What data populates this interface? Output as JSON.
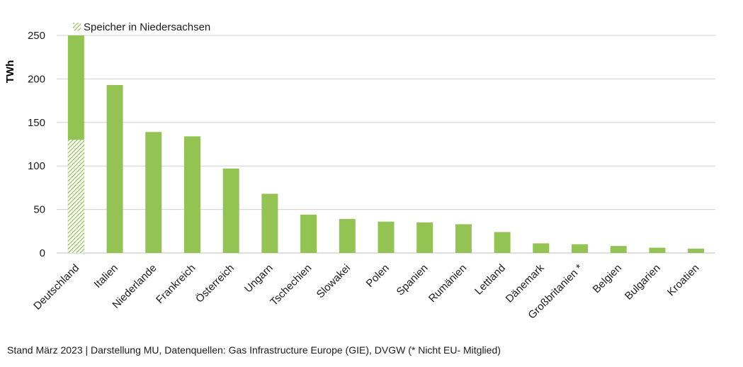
{
  "chart_data": {
    "type": "bar",
    "ylabel": "TWh",
    "xlabel": "",
    "ylim": [
      0,
      250
    ],
    "yticks": [
      0,
      50,
      100,
      150,
      200,
      250
    ],
    "grid": true,
    "legend": {
      "label": "Speicher in Niedersachsen",
      "placement": "top-left"
    },
    "categories": [
      "Deutschland",
      "Italien",
      "Niederlande",
      "Frankreich",
      "Österreich",
      "Ungarn",
      "Tschechien",
      "Slowakei",
      "Polen",
      "Spanien",
      "Rumänien",
      "Lettland",
      "Dänemark",
      "Großbritanien *",
      "Belgien",
      "Bulgarien",
      "Kroatien"
    ],
    "values": [
      250,
      193,
      139,
      134,
      97,
      68,
      44,
      39,
      36,
      35,
      33,
      24,
      11,
      10,
      8,
      6,
      5
    ],
    "series": [
      {
        "name": "Speicher in Niedersachsen",
        "values": [
          130,
          0,
          0,
          0,
          0,
          0,
          0,
          0,
          0,
          0,
          0,
          0,
          0,
          0,
          0,
          0,
          0
        ]
      }
    ],
    "colors": {
      "bar": "#92c353",
      "hatch": "#92c353",
      "grid": "#d0d0d0",
      "axis": "#bfbfbf"
    }
  },
  "footnote": "Stand März 2023 | Darstellung MU, Datenquellen: Gas Infrastructure Europe (GIE), DVGW (* Nicht EU- Mitglied)"
}
